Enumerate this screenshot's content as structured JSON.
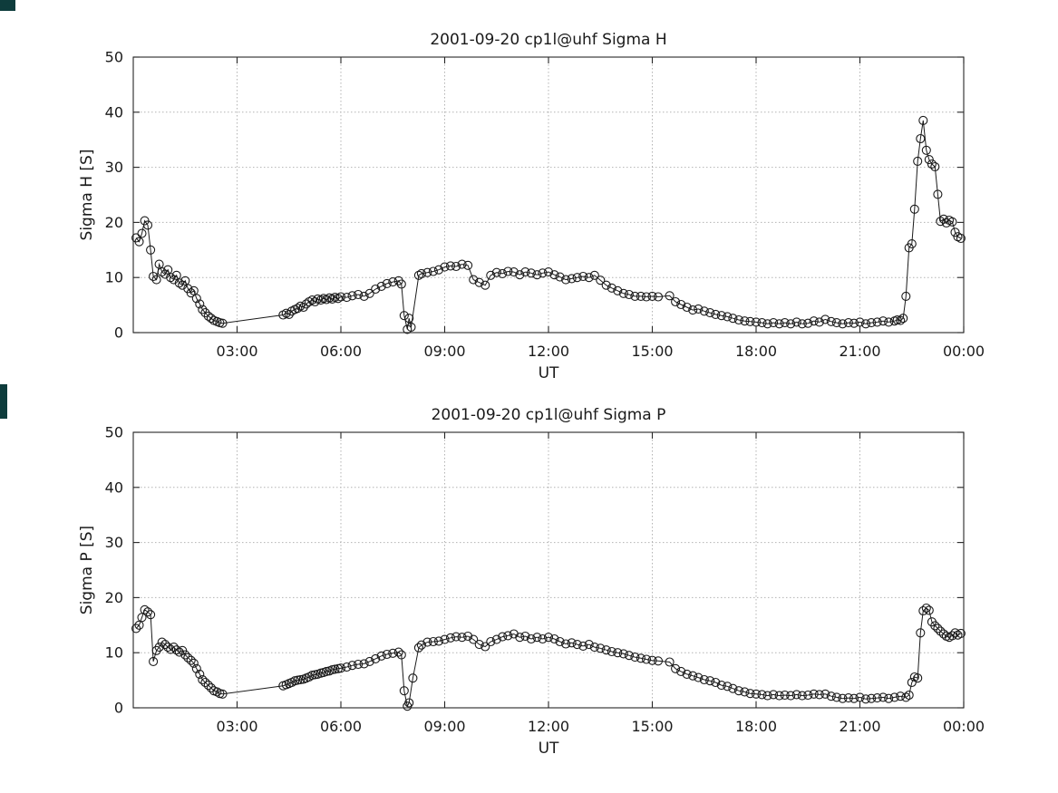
{
  "figure": {
    "background": "#ffffff",
    "axis_color": "#262626",
    "grid_color": "#b3b3b3",
    "data_color": "#1a1a1a",
    "artifacts": [
      {
        "name": "top-left-fragment",
        "color": "#0e3c3c"
      },
      {
        "name": "left-edge-fragment",
        "color": "#0e3c3c"
      }
    ]
  },
  "chart_data": [
    {
      "type": "line",
      "name": "sigma-h-chart",
      "title": "2001-09-20  cp1l@uhf Sigma H",
      "xlabel": "UT",
      "ylabel": "Sigma H [S]",
      "xlim": [
        0,
        24
      ],
      "ylim": [
        0,
        50
      ],
      "xticks": [
        3,
        6,
        9,
        12,
        15,
        18,
        21,
        24
      ],
      "xtick_labels": [
        "03:00",
        "06:00",
        "09:00",
        "12:00",
        "15:00",
        "18:00",
        "21:00",
        "00:00"
      ],
      "yticks": [
        0,
        10,
        20,
        30,
        40,
        50
      ],
      "grid": true,
      "marker": "open-circle",
      "legend": null,
      "points": [
        [
          0.08,
          17.2
        ],
        [
          0.17,
          16.5
        ],
        [
          0.25,
          18.0
        ],
        [
          0.33,
          20.3
        ],
        [
          0.42,
          19.5
        ],
        [
          0.5,
          15.0
        ],
        [
          0.58,
          10.2
        ],
        [
          0.67,
          9.6
        ],
        [
          0.75,
          12.4
        ],
        [
          0.83,
          11.0
        ],
        [
          0.92,
          10.6
        ],
        [
          1.0,
          11.4
        ],
        [
          1.08,
          10.0
        ],
        [
          1.17,
          9.6
        ],
        [
          1.25,
          10.4
        ],
        [
          1.33,
          9.0
        ],
        [
          1.42,
          8.6
        ],
        [
          1.5,
          9.4
        ],
        [
          1.58,
          8.0
        ],
        [
          1.67,
          7.2
        ],
        [
          1.75,
          7.6
        ],
        [
          1.83,
          6.2
        ],
        [
          1.92,
          5.2
        ],
        [
          2.0,
          4.2
        ],
        [
          2.08,
          3.6
        ],
        [
          2.17,
          3.0
        ],
        [
          2.25,
          2.6
        ],
        [
          2.33,
          2.2
        ],
        [
          2.42,
          2.0
        ],
        [
          2.5,
          1.8
        ],
        [
          2.58,
          1.7
        ],
        [
          4.33,
          3.2
        ],
        [
          4.42,
          3.5
        ],
        [
          4.5,
          3.3
        ],
        [
          4.58,
          3.9
        ],
        [
          4.67,
          4.2
        ],
        [
          4.75,
          4.4
        ],
        [
          4.83,
          4.8
        ],
        [
          4.92,
          4.6
        ],
        [
          5.0,
          5.2
        ],
        [
          5.08,
          5.6
        ],
        [
          5.17,
          5.9
        ],
        [
          5.25,
          5.6
        ],
        [
          5.33,
          6.1
        ],
        [
          5.42,
          5.9
        ],
        [
          5.5,
          6.2
        ],
        [
          5.58,
          6.0
        ],
        [
          5.67,
          6.3
        ],
        [
          5.75,
          6.1
        ],
        [
          5.83,
          6.4
        ],
        [
          5.92,
          6.2
        ],
        [
          6.0,
          6.5
        ],
        [
          6.17,
          6.4
        ],
        [
          6.33,
          6.7
        ],
        [
          6.5,
          6.9
        ],
        [
          6.67,
          6.6
        ],
        [
          6.83,
          7.1
        ],
        [
          7.0,
          7.9
        ],
        [
          7.17,
          8.4
        ],
        [
          7.33,
          8.9
        ],
        [
          7.5,
          9.2
        ],
        [
          7.67,
          9.4
        ],
        [
          7.75,
          8.8
        ],
        [
          7.83,
          3.1
        ],
        [
          7.92,
          0.6
        ],
        [
          7.97,
          2.6
        ],
        [
          8.03,
          1.0
        ],
        [
          8.25,
          10.4
        ],
        [
          8.33,
          10.7
        ],
        [
          8.5,
          10.9
        ],
        [
          8.67,
          11.1
        ],
        [
          8.83,
          11.4
        ],
        [
          9.0,
          11.9
        ],
        [
          9.17,
          12.1
        ],
        [
          9.33,
          12.0
        ],
        [
          9.5,
          12.4
        ],
        [
          9.67,
          12.2
        ],
        [
          9.83,
          9.6
        ],
        [
          10.0,
          9.1
        ],
        [
          10.17,
          8.6
        ],
        [
          10.33,
          10.4
        ],
        [
          10.5,
          10.9
        ],
        [
          10.67,
          10.7
        ],
        [
          10.83,
          11.1
        ],
        [
          11.0,
          11.0
        ],
        [
          11.17,
          10.5
        ],
        [
          11.33,
          11.0
        ],
        [
          11.5,
          10.8
        ],
        [
          11.67,
          10.5
        ],
        [
          11.83,
          10.8
        ],
        [
          12.0,
          11.0
        ],
        [
          12.17,
          10.5
        ],
        [
          12.33,
          10.1
        ],
        [
          12.5,
          9.6
        ],
        [
          12.67,
          9.8
        ],
        [
          12.83,
          10.0
        ],
        [
          13.0,
          10.2
        ],
        [
          13.17,
          10.0
        ],
        [
          13.33,
          10.4
        ],
        [
          13.5,
          9.5
        ],
        [
          13.67,
          8.6
        ],
        [
          13.83,
          8.1
        ],
        [
          14.0,
          7.6
        ],
        [
          14.17,
          7.1
        ],
        [
          14.33,
          6.9
        ],
        [
          14.5,
          6.6
        ],
        [
          14.67,
          6.6
        ],
        [
          14.83,
          6.5
        ],
        [
          15.0,
          6.6
        ],
        [
          15.17,
          6.5
        ],
        [
          15.5,
          6.7
        ],
        [
          15.67,
          5.6
        ],
        [
          15.83,
          5.1
        ],
        [
          16.0,
          4.6
        ],
        [
          16.17,
          4.1
        ],
        [
          16.33,
          4.3
        ],
        [
          16.5,
          3.9
        ],
        [
          16.67,
          3.6
        ],
        [
          16.83,
          3.3
        ],
        [
          17.0,
          3.1
        ],
        [
          17.17,
          2.9
        ],
        [
          17.33,
          2.6
        ],
        [
          17.5,
          2.3
        ],
        [
          17.67,
          2.1
        ],
        [
          17.83,
          2.0
        ],
        [
          18.0,
          1.9
        ],
        [
          18.17,
          1.8
        ],
        [
          18.33,
          1.6
        ],
        [
          18.5,
          1.8
        ],
        [
          18.67,
          1.6
        ],
        [
          18.83,
          1.8
        ],
        [
          19.0,
          1.6
        ],
        [
          19.17,
          1.9
        ],
        [
          19.33,
          1.6
        ],
        [
          19.5,
          1.7
        ],
        [
          19.67,
          2.1
        ],
        [
          19.83,
          1.9
        ],
        [
          20.0,
          2.4
        ],
        [
          20.17,
          2.0
        ],
        [
          20.33,
          1.8
        ],
        [
          20.5,
          1.6
        ],
        [
          20.67,
          1.8
        ],
        [
          20.83,
          1.7
        ],
        [
          21.0,
          1.9
        ],
        [
          21.17,
          1.6
        ],
        [
          21.33,
          1.8
        ],
        [
          21.5,
          1.9
        ],
        [
          21.67,
          2.1
        ],
        [
          21.83,
          1.9
        ],
        [
          22.0,
          2.1
        ],
        [
          22.08,
          2.3
        ],
        [
          22.17,
          2.2
        ],
        [
          22.25,
          2.6
        ],
        [
          22.33,
          6.6
        ],
        [
          22.42,
          15.4
        ],
        [
          22.5,
          16.1
        ],
        [
          22.58,
          22.4
        ],
        [
          22.67,
          31.1
        ],
        [
          22.75,
          35.2
        ],
        [
          22.83,
          38.5
        ],
        [
          22.92,
          33.1
        ],
        [
          23.0,
          31.4
        ],
        [
          23.08,
          30.6
        ],
        [
          23.17,
          30.1
        ],
        [
          23.25,
          25.1
        ],
        [
          23.33,
          20.2
        ],
        [
          23.42,
          20.6
        ],
        [
          23.5,
          19.9
        ],
        [
          23.58,
          20.4
        ],
        [
          23.67,
          20.1
        ],
        [
          23.75,
          18.2
        ],
        [
          23.83,
          17.4
        ],
        [
          23.92,
          17.1
        ]
      ]
    },
    {
      "type": "line",
      "name": "sigma-p-chart",
      "title": "2001-09-20  cp1l@uhf Sigma P",
      "xlabel": "UT",
      "ylabel": "Sigma P [S]",
      "xlim": [
        0,
        24
      ],
      "ylim": [
        0,
        50
      ],
      "xticks": [
        3,
        6,
        9,
        12,
        15,
        18,
        21,
        24
      ],
      "xtick_labels": [
        "03:00",
        "06:00",
        "09:00",
        "12:00",
        "15:00",
        "18:00",
        "21:00",
        "00:00"
      ],
      "yticks": [
        0,
        10,
        20,
        30,
        40,
        50
      ],
      "grid": true,
      "marker": "open-circle",
      "legend": null,
      "points": [
        [
          0.08,
          14.4
        ],
        [
          0.17,
          15.0
        ],
        [
          0.25,
          16.4
        ],
        [
          0.33,
          17.8
        ],
        [
          0.42,
          17.4
        ],
        [
          0.5,
          16.9
        ],
        [
          0.58,
          8.4
        ],
        [
          0.67,
          10.4
        ],
        [
          0.75,
          11.0
        ],
        [
          0.83,
          11.9
        ],
        [
          0.92,
          11.5
        ],
        [
          1.0,
          11.0
        ],
        [
          1.08,
          10.6
        ],
        [
          1.17,
          11.0
        ],
        [
          1.25,
          10.5
        ],
        [
          1.33,
          10.1
        ],
        [
          1.42,
          10.4
        ],
        [
          1.5,
          9.6
        ],
        [
          1.58,
          9.1
        ],
        [
          1.67,
          8.6
        ],
        [
          1.75,
          8.1
        ],
        [
          1.83,
          7.1
        ],
        [
          1.92,
          6.1
        ],
        [
          2.0,
          5.1
        ],
        [
          2.08,
          4.6
        ],
        [
          2.17,
          4.1
        ],
        [
          2.25,
          3.6
        ],
        [
          2.33,
          3.1
        ],
        [
          2.42,
          2.9
        ],
        [
          2.5,
          2.6
        ],
        [
          2.58,
          2.5
        ],
        [
          4.33,
          4.0
        ],
        [
          4.42,
          4.2
        ],
        [
          4.5,
          4.4
        ],
        [
          4.58,
          4.6
        ],
        [
          4.67,
          4.9
        ],
        [
          4.75,
          5.0
        ],
        [
          4.83,
          5.1
        ],
        [
          4.92,
          5.2
        ],
        [
          5.0,
          5.4
        ],
        [
          5.08,
          5.6
        ],
        [
          5.17,
          5.9
        ],
        [
          5.25,
          6.0
        ],
        [
          5.33,
          6.1
        ],
        [
          5.42,
          6.3
        ],
        [
          5.5,
          6.4
        ],
        [
          5.58,
          6.6
        ],
        [
          5.67,
          6.7
        ],
        [
          5.75,
          6.9
        ],
        [
          5.83,
          7.0
        ],
        [
          5.92,
          7.1
        ],
        [
          6.0,
          7.2
        ],
        [
          6.17,
          7.4
        ],
        [
          6.33,
          7.7
        ],
        [
          6.5,
          7.9
        ],
        [
          6.67,
          8.0
        ],
        [
          6.83,
          8.4
        ],
        [
          7.0,
          8.9
        ],
        [
          7.17,
          9.4
        ],
        [
          7.33,
          9.7
        ],
        [
          7.5,
          9.9
        ],
        [
          7.67,
          10.1
        ],
        [
          7.75,
          9.6
        ],
        [
          7.83,
          3.1
        ],
        [
          7.92,
          0.3
        ],
        [
          7.97,
          0.9
        ],
        [
          8.08,
          5.4
        ],
        [
          8.25,
          10.9
        ],
        [
          8.33,
          11.4
        ],
        [
          8.5,
          11.9
        ],
        [
          8.67,
          12.0
        ],
        [
          8.83,
          12.1
        ],
        [
          9.0,
          12.4
        ],
        [
          9.17,
          12.7
        ],
        [
          9.33,
          12.9
        ],
        [
          9.5,
          12.8
        ],
        [
          9.67,
          13.0
        ],
        [
          9.83,
          12.4
        ],
        [
          10.0,
          11.5
        ],
        [
          10.17,
          11.1
        ],
        [
          10.33,
          12.0
        ],
        [
          10.5,
          12.4
        ],
        [
          10.67,
          12.9
        ],
        [
          10.83,
          13.1
        ],
        [
          11.0,
          13.4
        ],
        [
          11.17,
          12.8
        ],
        [
          11.33,
          13.0
        ],
        [
          11.5,
          12.5
        ],
        [
          11.67,
          12.8
        ],
        [
          11.83,
          12.5
        ],
        [
          12.0,
          12.8
        ],
        [
          12.17,
          12.5
        ],
        [
          12.33,
          12.0
        ],
        [
          12.5,
          11.6
        ],
        [
          12.67,
          11.8
        ],
        [
          12.83,
          11.5
        ],
        [
          13.0,
          11.2
        ],
        [
          13.17,
          11.5
        ],
        [
          13.33,
          11.0
        ],
        [
          13.5,
          10.8
        ],
        [
          13.67,
          10.5
        ],
        [
          13.83,
          10.2
        ],
        [
          14.0,
          10.0
        ],
        [
          14.17,
          9.8
        ],
        [
          14.33,
          9.5
        ],
        [
          14.5,
          9.2
        ],
        [
          14.67,
          9.0
        ],
        [
          14.83,
          8.8
        ],
        [
          15.0,
          8.6
        ],
        [
          15.17,
          8.5
        ],
        [
          15.5,
          8.3
        ],
        [
          15.67,
          7.1
        ],
        [
          15.83,
          6.6
        ],
        [
          16.0,
          6.1
        ],
        [
          16.17,
          5.8
        ],
        [
          16.33,
          5.5
        ],
        [
          16.5,
          5.1
        ],
        [
          16.67,
          4.9
        ],
        [
          16.83,
          4.6
        ],
        [
          17.0,
          4.1
        ],
        [
          17.17,
          3.9
        ],
        [
          17.33,
          3.5
        ],
        [
          17.5,
          3.1
        ],
        [
          17.67,
          2.9
        ],
        [
          17.83,
          2.6
        ],
        [
          18.0,
          2.5
        ],
        [
          18.17,
          2.4
        ],
        [
          18.33,
          2.2
        ],
        [
          18.5,
          2.4
        ],
        [
          18.67,
          2.2
        ],
        [
          18.83,
          2.3
        ],
        [
          19.0,
          2.2
        ],
        [
          19.17,
          2.4
        ],
        [
          19.33,
          2.2
        ],
        [
          19.5,
          2.3
        ],
        [
          19.67,
          2.5
        ],
        [
          19.83,
          2.4
        ],
        [
          20.0,
          2.5
        ],
        [
          20.17,
          2.1
        ],
        [
          20.33,
          1.9
        ],
        [
          20.5,
          1.7
        ],
        [
          20.67,
          1.8
        ],
        [
          20.83,
          1.7
        ],
        [
          21.0,
          1.9
        ],
        [
          21.17,
          1.6
        ],
        [
          21.33,
          1.7
        ],
        [
          21.5,
          1.8
        ],
        [
          21.67,
          1.9
        ],
        [
          21.83,
          1.7
        ],
        [
          22.0,
          1.9
        ],
        [
          22.17,
          2.1
        ],
        [
          22.33,
          1.9
        ],
        [
          22.42,
          2.3
        ],
        [
          22.5,
          4.6
        ],
        [
          22.58,
          5.6
        ],
        [
          22.67,
          5.4
        ],
        [
          22.75,
          13.6
        ],
        [
          22.83,
          17.6
        ],
        [
          22.92,
          18.1
        ],
        [
          23.0,
          17.7
        ],
        [
          23.08,
          15.6
        ],
        [
          23.17,
          14.9
        ],
        [
          23.25,
          14.4
        ],
        [
          23.33,
          13.9
        ],
        [
          23.42,
          13.4
        ],
        [
          23.5,
          13.0
        ],
        [
          23.58,
          12.8
        ],
        [
          23.67,
          13.1
        ],
        [
          23.75,
          13.6
        ],
        [
          23.83,
          13.2
        ],
        [
          23.92,
          13.5
        ]
      ]
    }
  ]
}
